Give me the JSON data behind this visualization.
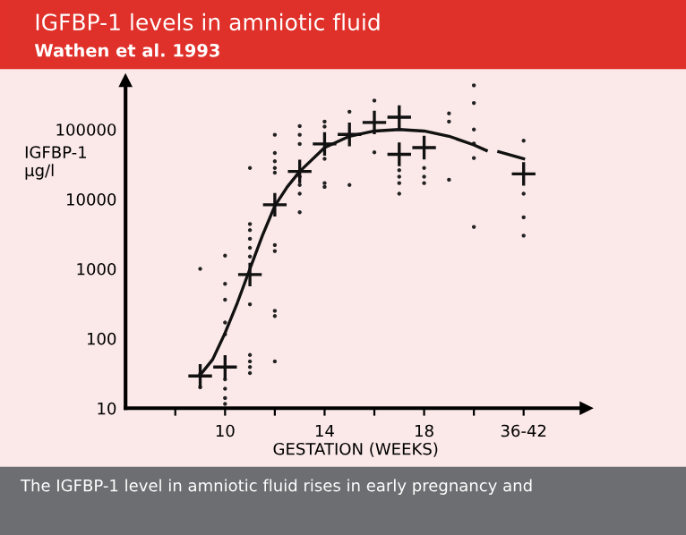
{
  "chart_data": {
    "type": "scatter",
    "title": "IGFBP-1 levels in amniotic fluid",
    "subtitle": "Wathen et al. 1993",
    "xlabel": "GESTATION (WEEKS)",
    "ylabel": "IGFBP-1\nµg/l",
    "annotations": [
      "The IGFBP-1 level in amniotic fluid rises in early pregnancy and"
    ],
    "log": "y",
    "xlim": [
      6,
      24.5
    ],
    "ylim": [
      10,
      500000
    ],
    "xticks": [
      {
        "value": 8,
        "label": null
      },
      10,
      {
        "value": 12,
        "label": null
      },
      14,
      {
        "value": 16,
        "label": null
      },
      18,
      {
        "value": 20,
        "label": null
      },
      {
        "value": 22,
        "label": "36-42"
      }
    ],
    "yticks": [
      10,
      100,
      1000,
      10000,
      100000
    ],
    "grid": false,
    "legend": false,
    "series": [
      {
        "marker": "circle",
        "color": "#222222",
        "x": [
          9,
          9,
          9,
          10,
          10,
          10,
          10,
          10,
          10,
          10,
          10,
          10,
          11,
          11,
          11,
          11,
          11,
          11,
          11,
          11,
          11,
          11,
          11,
          12,
          12,
          12,
          12,
          12,
          12,
          12,
          12,
          12,
          12,
          13,
          13,
          13,
          13,
          13,
          13,
          13,
          14,
          14,
          14,
          14,
          14,
          15,
          15,
          16,
          16,
          17,
          17,
          17,
          17,
          18,
          18,
          18,
          19,
          19,
          19,
          20,
          20,
          20,
          20,
          20,
          20,
          22,
          22,
          22,
          22
        ],
        "values": [
          1000,
          31,
          20,
          1550,
          610,
          360,
          170,
          115,
          26,
          19,
          14,
          11.5,
          28000,
          4400,
          3600,
          2700,
          2000,
          1500,
          310,
          58,
          47,
          39,
          32,
          84000,
          46000,
          35000,
          28000,
          24000,
          2200,
          1800,
          250,
          210,
          47,
          112000,
          84000,
          62000,
          21000,
          16000,
          12000,
          6500,
          130000,
          110000,
          38000,
          17000,
          15000,
          180000,
          16000,
          260000,
          47000,
          26000,
          21000,
          17000,
          12000,
          28000,
          21000,
          17000,
          170000,
          130000,
          19000,
          430000,
          240000,
          100000,
          63000,
          39000,
          4000,
          69000,
          12000,
          5500,
          3000
        ]
      },
      {
        "type": "scatter",
        "marker": "cross",
        "color": "#111111",
        "x": [
          9,
          10,
          11,
          12,
          13,
          14,
          15,
          16,
          17,
          17,
          18,
          22
        ],
        "values": [
          29,
          39,
          830,
          8300,
          25000,
          62000,
          85000,
          126000,
          150000,
          44000,
          55000,
          23000
        ]
      },
      {
        "type": "line",
        "marker": "none",
        "color": "#111111",
        "x": [
          9,
          9.5,
          10,
          10.5,
          11,
          11.5,
          12,
          12.5,
          13,
          14,
          15,
          16,
          17,
          18,
          19,
          20,
          20.5
        ],
        "values": [
          30,
          50,
          120,
          330,
          1000,
          3000,
          8000,
          15000,
          25000,
          55000,
          80000,
          95000,
          100000,
          95000,
          80000,
          60000,
          50000
        ]
      },
      {
        "type": "line",
        "marker": "none",
        "color": "#111111",
        "x": [
          21,
          22
        ],
        "values": [
          48000,
          38000
        ]
      }
    ]
  }
}
